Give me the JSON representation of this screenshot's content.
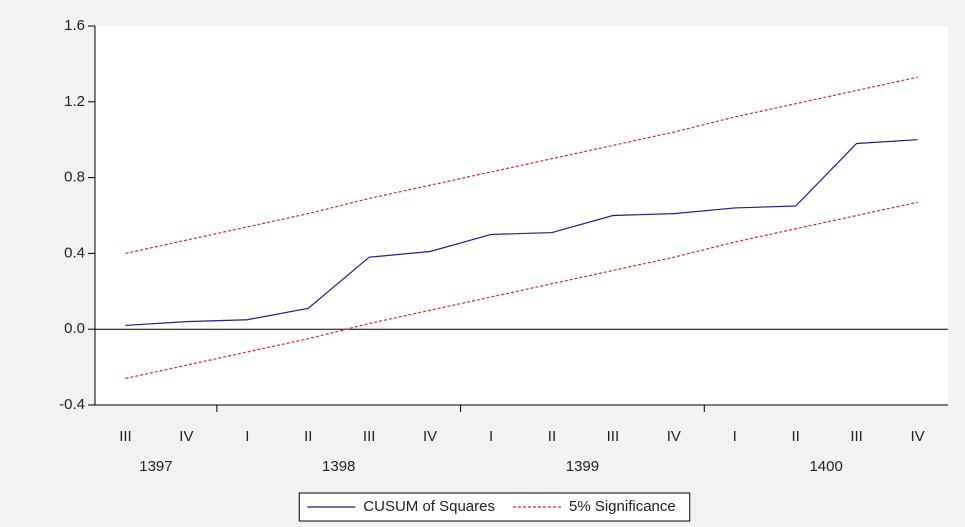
{
  "chart_data": {
    "type": "line",
    "categories": [
      "III",
      "IV",
      "I",
      "II",
      "III",
      "IV",
      "I",
      "II",
      "III",
      "IV",
      "I",
      "II",
      "III",
      "IV"
    ],
    "x_groups": [
      "1397",
      "1398",
      "1399",
      "1400"
    ],
    "series": [
      {
        "name": "CUSUM of Squares",
        "color": "#1f1f8c",
        "dash": false,
        "values": [
          0.02,
          0.04,
          0.05,
          0.11,
          0.38,
          0.41,
          0.5,
          0.51,
          0.6,
          0.61,
          0.64,
          0.65,
          0.98,
          1.0
        ]
      },
      {
        "name": "5% Significance",
        "color": "#d0302a",
        "dash": true,
        "values": [
          0.4,
          0.47,
          0.54,
          0.61,
          0.69,
          0.76,
          0.83,
          0.9,
          0.97,
          1.04,
          1.12,
          1.19,
          1.26,
          1.33
        ]
      },
      {
        "name": null,
        "color": "#d0302a",
        "dash": true,
        "values": [
          -0.26,
          -0.19,
          -0.12,
          -0.05,
          0.03,
          0.1,
          0.17,
          0.24,
          0.31,
          0.38,
          0.46,
          0.53,
          0.6,
          0.67
        ]
      }
    ],
    "ylim": [
      -0.4,
      1.6
    ],
    "yticks": [
      -0.4,
      {
        "value": 0,
        "label": "0.0"
      },
      0.4,
      0.8,
      1.2,
      1.6
    ],
    "zero_line": true,
    "legend": "bottom"
  }
}
